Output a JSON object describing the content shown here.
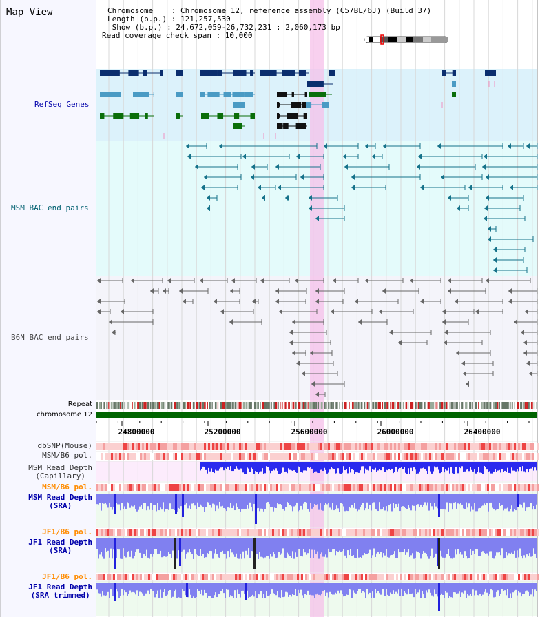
{
  "view": {
    "title": "Map View"
  },
  "info": {
    "line1": "Chromosome    : Chromosome 12, reference assembly (C57BL/6J) (Build 37)",
    "line2": "Length (b.p.) : 121,257,530",
    "line3": " Show (b.p.) : 24,672,059-26,732,231 : 2,060,173 bp",
    "line4": "Read coverage check span : 10,000"
  },
  "tracks": {
    "refseq": "RefSeq Genes",
    "msm_bac": "MSM BAC end pairs",
    "b6n_bac": "B6N BAC end pairs",
    "repeat": "Repeat",
    "chromosome": "chromosome 12",
    "dbsnp": "dbSNP(Mouse)",
    "msm_pol": "MSM/B6 pol.",
    "msm_depth_cap_1": "MSM Read Depth",
    "msm_depth_cap_2": "(Capillary)",
    "msm_pol2": "MSM/B6 pol.",
    "msm_depth_sra_1": "MSM Read Depth",
    "msm_depth_sra_2": "(SRA)",
    "jf1_pol": "JF1/B6 pol.",
    "jf1_depth_sra_1": "JF1 Read Depth",
    "jf1_depth_sra_2": "(SRA)",
    "jf1_pol2": "JF1/B6 pol.",
    "jf1_depth_trim_1": "JF1 Read Depth",
    "jf1_depth_trim_2": "(SRA trimmed)"
  },
  "axis": {
    "ticks": [
      "24800000",
      "25200000",
      "25600000",
      "26000000",
      "26400000"
    ]
  },
  "colors": {
    "refseq_label": "#0000aa",
    "msm_bac_label": "#006070",
    "b6n_bac_label": "#444444",
    "pol_label": "#ff8c00",
    "depth_label": "#0000aa",
    "highlight": "#f5c0ea",
    "chromosome_bar": "#006400"
  }
}
